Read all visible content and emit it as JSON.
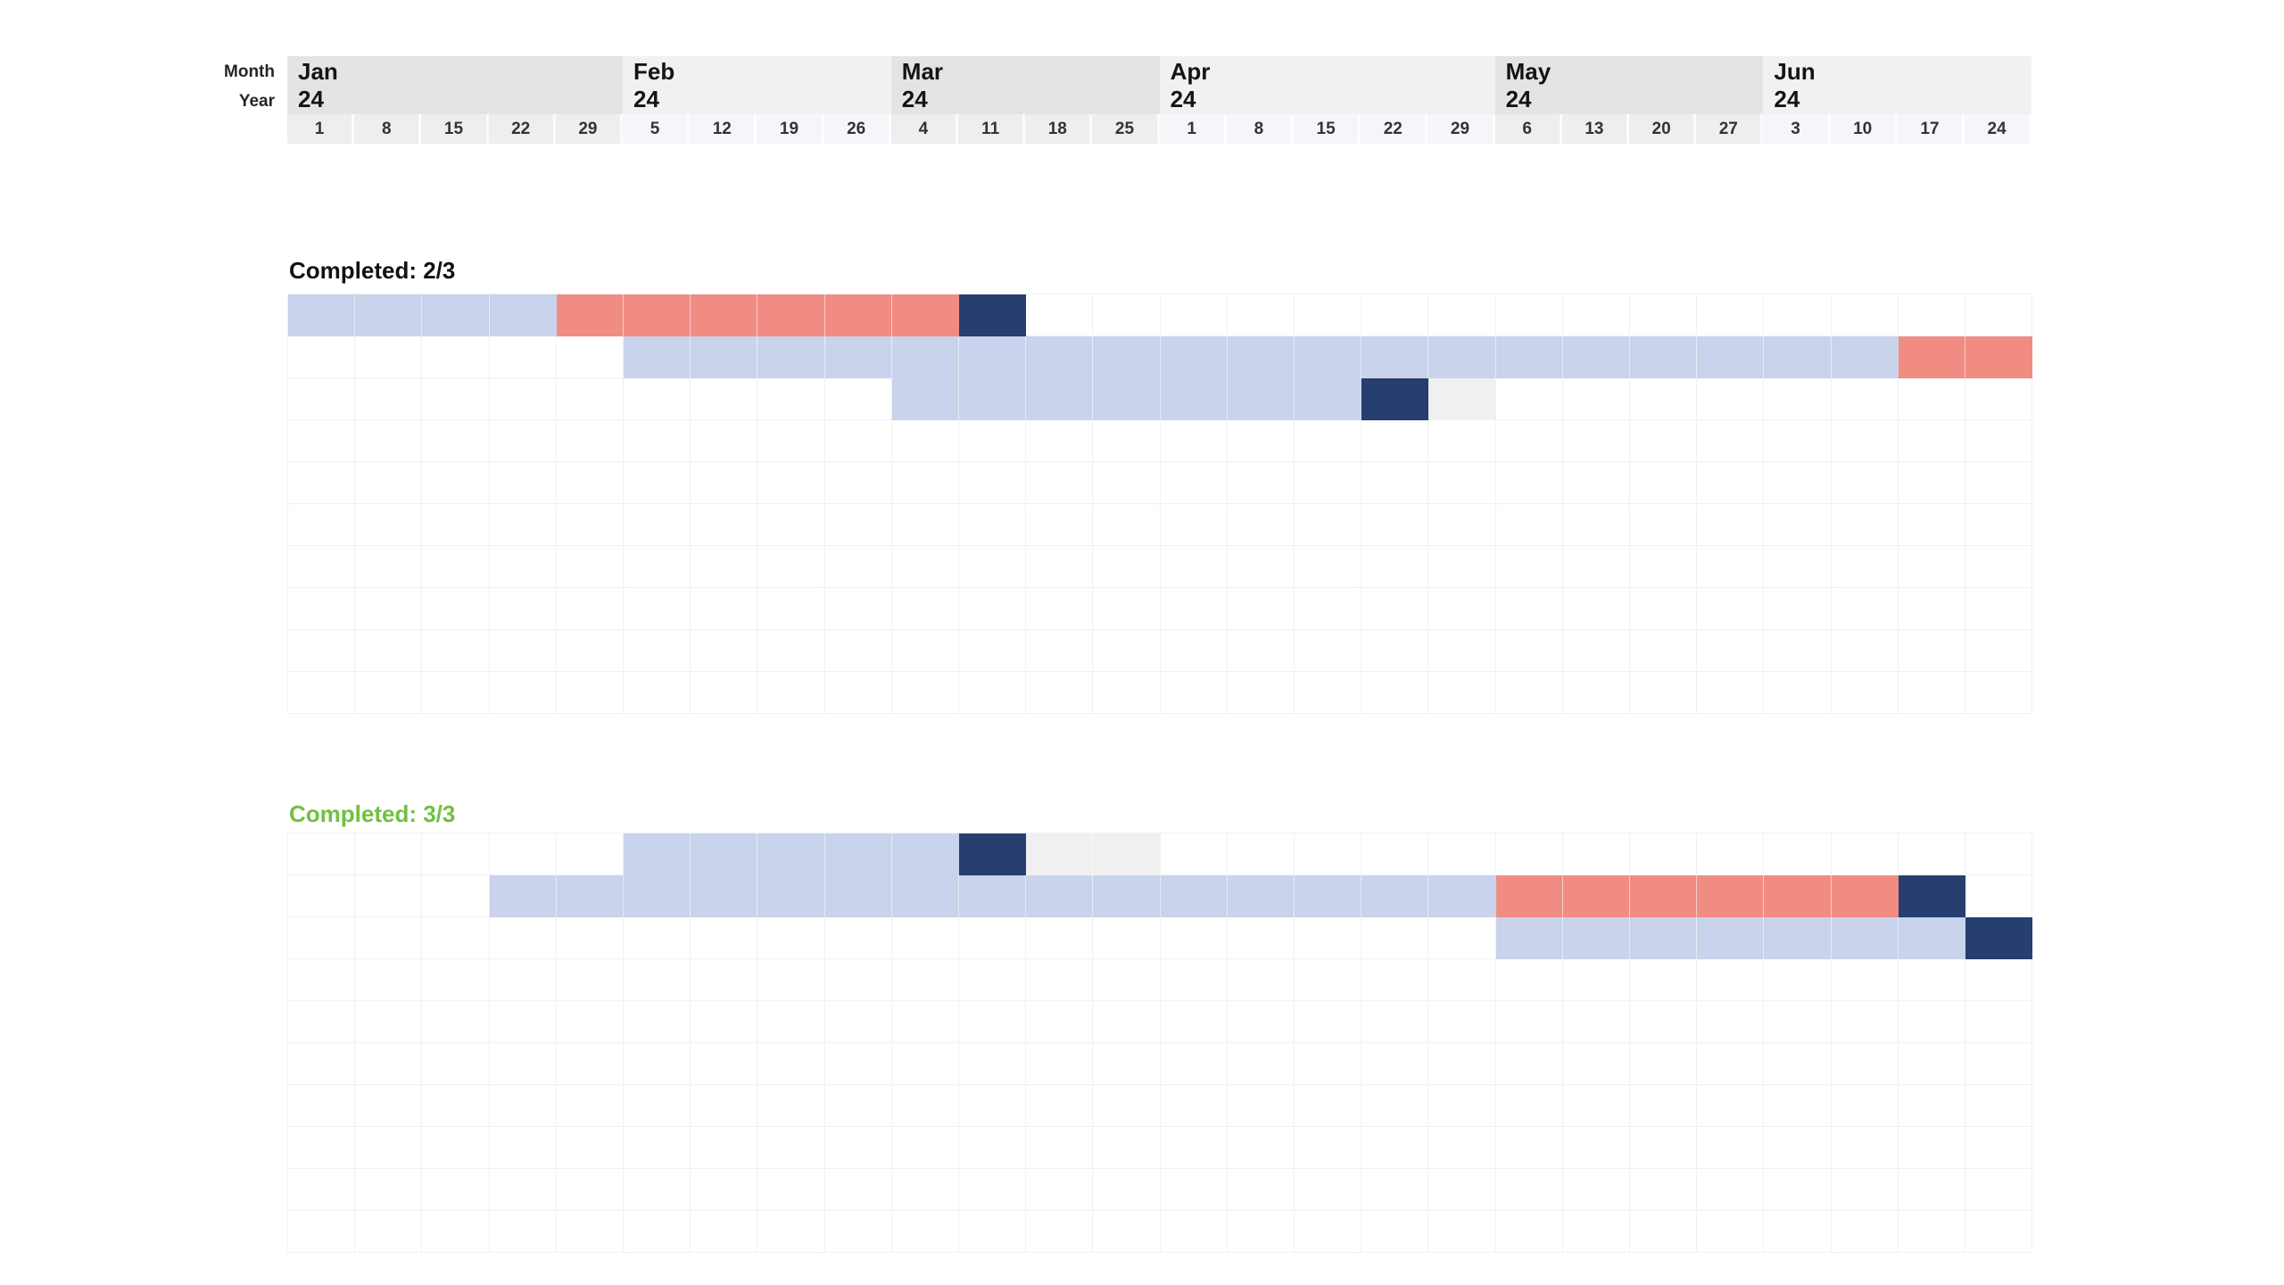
{
  "header": {
    "month_label": "Month",
    "year_label": "Year"
  },
  "chart_data": {
    "type": "gantt",
    "timeline_unit": "week",
    "months": [
      {
        "name": "Jan",
        "year": "24",
        "shade": "dark",
        "weeks": [
          "1",
          "8",
          "15",
          "22",
          "29"
        ]
      },
      {
        "name": "Feb",
        "year": "24",
        "shade": "light",
        "weeks": [
          "5",
          "12",
          "19",
          "26"
        ]
      },
      {
        "name": "Mar",
        "year": "24",
        "shade": "dark",
        "weeks": [
          "4",
          "11",
          "18",
          "25"
        ]
      },
      {
        "name": "Apr",
        "year": "24",
        "shade": "light",
        "weeks": [
          "1",
          "8",
          "15",
          "22",
          "29"
        ]
      },
      {
        "name": "May",
        "year": "24",
        "shade": "dark",
        "weeks": [
          "6",
          "13",
          "20",
          "27"
        ]
      },
      {
        "name": "Jun",
        "year": "24",
        "shade": "light",
        "weeks": [
          "3",
          "10",
          "17",
          "24"
        ]
      }
    ],
    "sections": [
      {
        "title": "Completed: 2/3",
        "title_color": "#111111",
        "rows": 10,
        "bars": [
          {
            "row": 0,
            "segments": [
              {
                "start": 0,
                "span": 4,
                "color": "blue",
                "from_week": "Jan 1",
                "to_week": "Jan 22"
              },
              {
                "start": 4,
                "span": 6,
                "color": "salmon",
                "from_week": "Jan 29",
                "to_week": "Mar 4"
              },
              {
                "start": 10,
                "span": 1,
                "color": "navy",
                "from_week": "Mar 11",
                "to_week": "Mar 11"
              }
            ]
          },
          {
            "row": 1,
            "segments": [
              {
                "start": 5,
                "span": 19,
                "color": "blue",
                "from_week": "Feb 5",
                "to_week": "Jun 10"
              },
              {
                "start": 24,
                "span": 2,
                "color": "salmon",
                "from_week": "Jun 17",
                "to_week": "Jun 24"
              }
            ]
          },
          {
            "row": 2,
            "segments": [
              {
                "start": 9,
                "span": 7,
                "color": "blue",
                "from_week": "Mar 4",
                "to_week": "Apr 15"
              },
              {
                "start": 16,
                "span": 1,
                "color": "navy",
                "from_week": "Apr 22",
                "to_week": "Apr 22"
              },
              {
                "start": 17,
                "span": 1,
                "color": "gray",
                "from_week": "Apr 29",
                "to_week": "Apr 29"
              }
            ]
          }
        ]
      },
      {
        "title": "Completed: 3/3",
        "title_color": "#70c043",
        "rows": 10,
        "bars": [
          {
            "row": 0,
            "segments": [
              {
                "start": 5,
                "span": 5,
                "color": "blue",
                "from_week": "Feb 5",
                "to_week": "Mar 4"
              },
              {
                "start": 10,
                "span": 1,
                "color": "navy",
                "from_week": "Mar 11",
                "to_week": "Mar 11"
              },
              {
                "start": 11,
                "span": 2,
                "color": "gray",
                "from_week": "Mar 18",
                "to_week": "Mar 25"
              }
            ]
          },
          {
            "row": 1,
            "segments": [
              {
                "start": 3,
                "span": 15,
                "color": "blue",
                "from_week": "Jan 22",
                "to_week": "Apr 29"
              },
              {
                "start": 18,
                "span": 6,
                "color": "salmon",
                "from_week": "May 6",
                "to_week": "Jun 10"
              },
              {
                "start": 24,
                "span": 1,
                "color": "navy",
                "from_week": "Jun 17",
                "to_week": "Jun 17"
              }
            ]
          },
          {
            "row": 2,
            "segments": [
              {
                "start": 18,
                "span": 7,
                "color": "blue",
                "from_week": "May 6",
                "to_week": "Jun 17"
              },
              {
                "start": 25,
                "span": 1,
                "color": "navy",
                "from_week": "Jun 24",
                "to_week": "Jun 24"
              }
            ]
          }
        ]
      }
    ],
    "colors": {
      "blue": "#c9d3ec",
      "salmon": "#f18c83",
      "navy": "#263f70",
      "gray": "#f0f0f0",
      "month_dark": "#e4e4e4",
      "month_light": "#f1f1f1",
      "date_dark": "#eeeeee",
      "date_light": "#f5f6fa",
      "grid_line": "#f0f1f5"
    }
  }
}
